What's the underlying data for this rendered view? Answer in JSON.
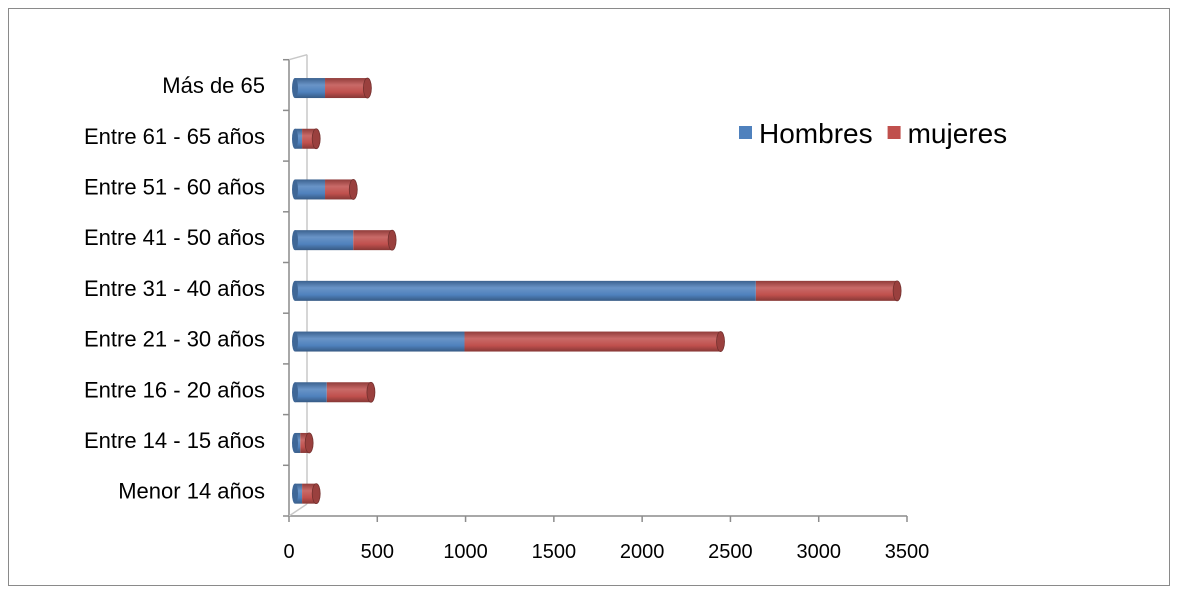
{
  "chart_data": {
    "type": "bar",
    "orientation": "horizontal",
    "stacked": true,
    "style": "3d-cylinder",
    "categories": [
      "Menor 14 años",
      "Entre 14 - 15 años",
      "Entre 16 - 20 años",
      "Entre 21 - 30 años",
      "Entre 31 - 40 años",
      "Entre 41 - 50 años",
      "Entre 51 - 60 años",
      "Entre 61 - 65 años",
      "Más de 65"
    ],
    "series": [
      {
        "name": "Hombres",
        "color": "#4f81bd",
        "values": [
          40,
          30,
          180,
          960,
          2610,
          330,
          170,
          40,
          170
        ]
      },
      {
        "name": "mujeres",
        "color": "#c0504d",
        "values": [
          80,
          50,
          250,
          1450,
          800,
          220,
          160,
          80,
          240
        ]
      }
    ],
    "title": "",
    "xlabel": "",
    "ylabel": "",
    "xlim": [
      0,
      3500
    ],
    "x_ticks": [
      "0",
      "500",
      "1000",
      "1500",
      "2000",
      "2500",
      "3000",
      "3500"
    ],
    "grid": false,
    "legend": {
      "placement": "top-right",
      "entries": [
        "Hombres",
        "mujeres"
      ]
    }
  }
}
